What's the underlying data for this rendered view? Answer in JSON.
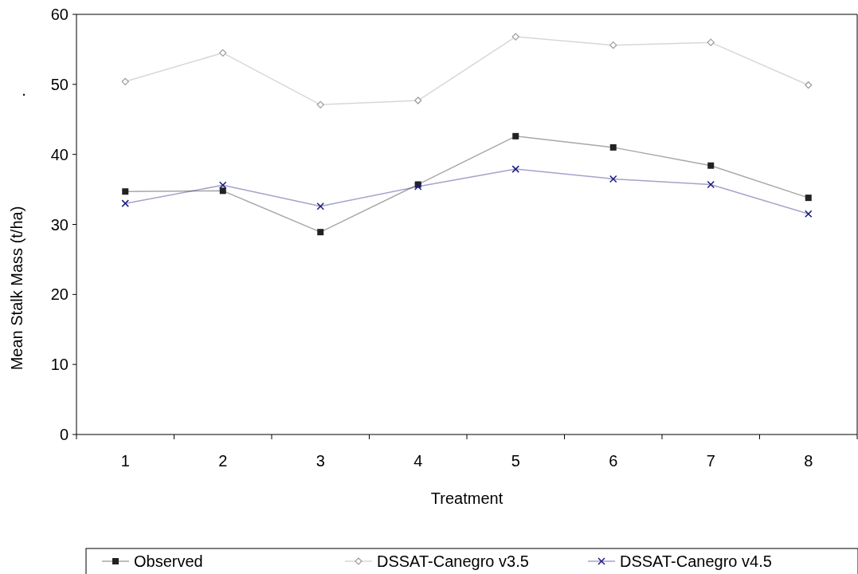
{
  "chart_data": {
    "type": "line",
    "xlabel": "Treatment",
    "ylabel": "Mean Stalk Mass (t/ha)",
    "annotations": [
      "."
    ],
    "categories": [
      "1",
      "2",
      "3",
      "4",
      "5",
      "6",
      "7",
      "8"
    ],
    "ylim": [
      0,
      60
    ],
    "yticks": [
      0,
      10,
      20,
      30,
      40,
      50,
      60
    ],
    "grid": false,
    "legend": "bottom",
    "line_style": "solid",
    "series": [
      {
        "name": "Observed",
        "color": "#222222",
        "marker": "square",
        "values": [
          34.7,
          34.8,
          28.9,
          35.7,
          42.6,
          41.0,
          38.4,
          33.8
        ]
      },
      {
        "name": "DSSAT-Canegro v3.5",
        "color": "#a09898",
        "marker": "diamond",
        "values": [
          50.4,
          54.5,
          47.1,
          47.7,
          56.8,
          55.6,
          56.0,
          49.9
        ]
      },
      {
        "name": "DSSAT-Canegro v4.5",
        "color": "#1a1a80",
        "marker": "cross",
        "values": [
          33.0,
          35.6,
          32.6,
          35.4,
          37.9,
          36.5,
          35.7,
          31.5
        ]
      }
    ]
  }
}
